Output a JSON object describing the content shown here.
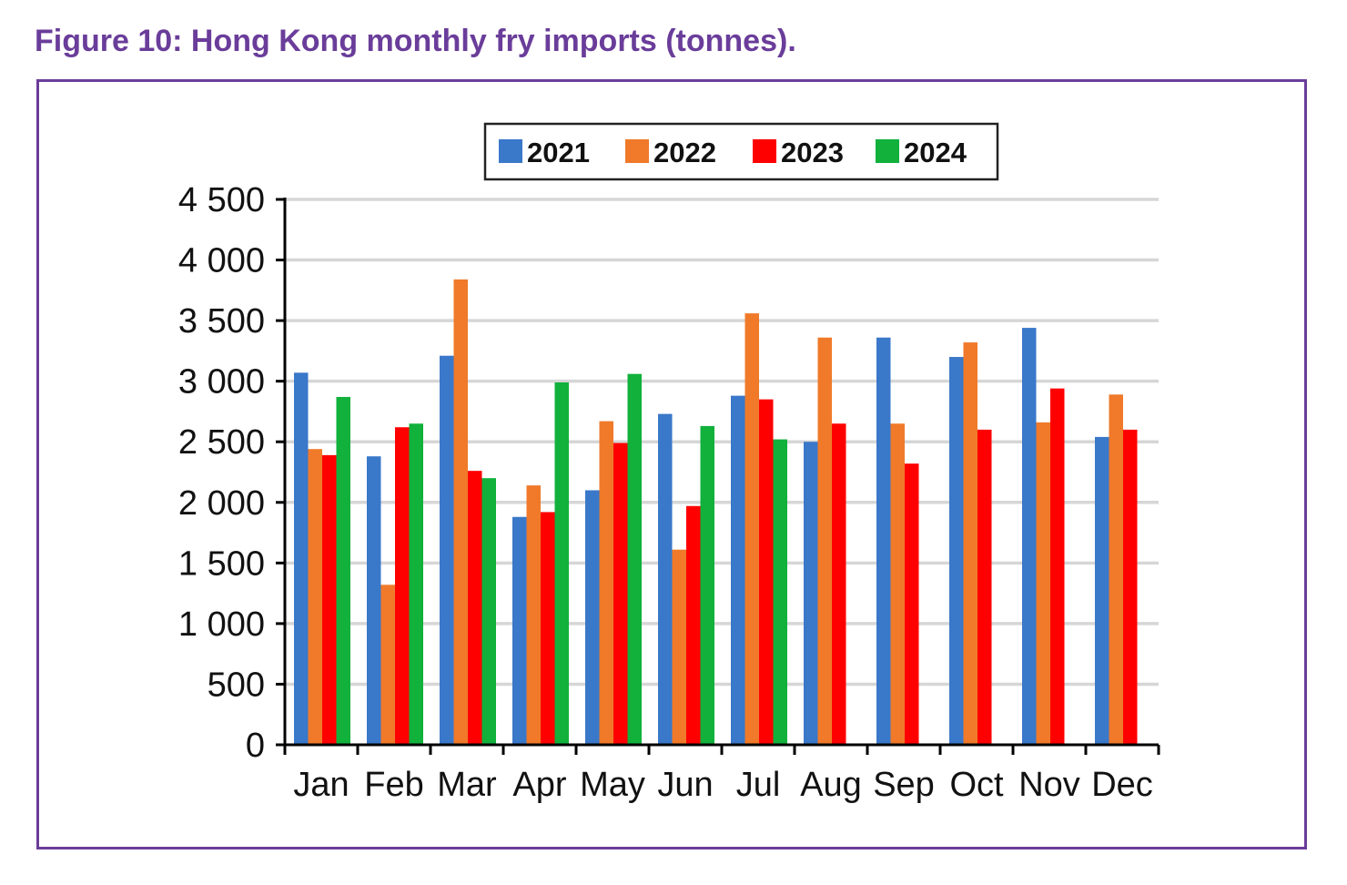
{
  "figure": {
    "title": "Figure 10: Hong Kong monthly fry imports (tonnes)."
  },
  "chart_data": {
    "type": "bar",
    "title": "",
    "xlabel": "",
    "ylabel": "",
    "ylim": [
      0,
      4500
    ],
    "yticks": [
      0,
      500,
      1000,
      1500,
      2000,
      2500,
      3000,
      3500,
      4000,
      4500
    ],
    "ytick_labels": [
      "0",
      "500",
      "1 000",
      "1 500",
      "2 000",
      "2 500",
      "3 000",
      "3 500",
      "4 000",
      "4 500"
    ],
    "grid": true,
    "legend_position": "top-center",
    "categories": [
      "Jan",
      "Feb",
      "Mar",
      "Apr",
      "May",
      "Jun",
      "Jul",
      "Aug",
      "Sep",
      "Oct",
      "Nov",
      "Dec"
    ],
    "series": [
      {
        "name": "2021",
        "color": "#3a78c9",
        "values": [
          3070,
          2380,
          3210,
          1880,
          2100,
          2730,
          2880,
          2500,
          3360,
          3200,
          3440,
          2540
        ]
      },
      {
        "name": "2022",
        "color": "#f07a2a",
        "values": [
          2440,
          1320,
          3840,
          2140,
          2670,
          1610,
          3560,
          3360,
          2650,
          3320,
          2660,
          2890
        ]
      },
      {
        "name": "2023",
        "color": "#ff0000",
        "values": [
          2390,
          2620,
          2260,
          1920,
          2490,
          1970,
          2850,
          2650,
          2320,
          2600,
          2940,
          2600
        ]
      },
      {
        "name": "2024",
        "color": "#11b13c",
        "values": [
          2870,
          2650,
          2200,
          2990,
          3060,
          2630,
          2520,
          null,
          null,
          null,
          null,
          null
        ]
      }
    ]
  }
}
